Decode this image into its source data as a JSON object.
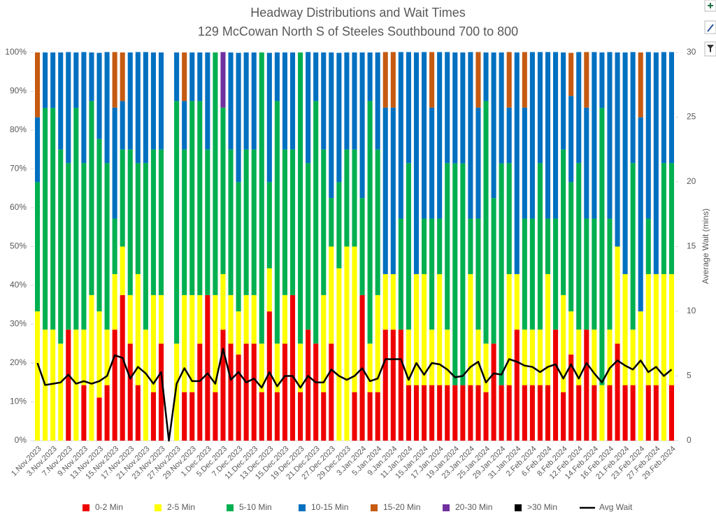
{
  "chart_data": {
    "type": "bar",
    "stacked": true,
    "title": "Headway Distributions and Wait Times",
    "subtitle": "129 McCowan North  S of Steeles Southbound 700 to 800",
    "y2_label": "Average Wait (mins)",
    "categories": [
      "1.Nov.2023",
      null,
      "3.Nov.2023",
      null,
      "7.Nov.2023",
      null,
      "9.Nov.2023",
      null,
      "13.Nov.2023",
      null,
      "15.Nov.2023",
      null,
      "17.Nov.2023",
      null,
      "21.Nov.2023",
      null,
      "23.Nov.2023",
      null,
      "27.Nov.2023",
      null,
      "29.Nov.2023",
      null,
      "1.Dec.2023",
      null,
      "5.Dec.2023",
      null,
      "7.Dec.2023",
      null,
      "11.Dec.2023",
      null,
      "13.Dec.2023",
      null,
      "15.Dec.2023",
      null,
      "19.Dec.2023",
      null,
      "21.Dec.2023",
      null,
      "27.Dec.2023",
      null,
      "29.Dec.2023",
      null,
      "3.Jan.2024",
      null,
      "5.Jan.2024",
      null,
      "9.Jan.2024",
      null,
      "11.Jan.2024",
      null,
      "15.Jan.2024",
      null,
      "17.Jan.2024",
      null,
      "19.Jan.2024",
      null,
      "23.Jan.2024",
      null,
      "25.Jan.2024",
      null,
      "29.Jan.2024",
      null,
      "31.Jan.2024",
      null,
      "2.Feb.2024",
      null,
      "6.Feb.2024",
      null,
      "8.Feb.2024",
      null,
      "12.Feb.2024",
      null,
      "14.Feb.2024",
      null,
      "16.Feb.2024",
      null,
      "21.Feb.2024",
      null,
      "23.Feb.2024",
      null,
      "27.Feb.2024",
      null,
      "29.Feb.2024"
    ],
    "series": [
      {
        "name": "0-2 Min",
        "color": "#ee0000",
        "values": [
          0,
          0,
          0,
          0,
          28.6,
          0,
          14.3,
          0,
          11.1,
          14.3,
          28.6,
          37.5,
          25,
          14.3,
          0,
          12.5,
          25,
          0,
          0,
          12.5,
          12.5,
          25,
          37.5,
          12.5,
          28.6,
          25,
          22.2,
          25,
          25,
          12.5,
          33.3,
          12.5,
          25,
          37.5,
          12.5,
          28.6,
          25,
          12.5,
          25,
          0,
          0,
          12.5,
          37.5,
          12.5,
          12.5,
          28.6,
          28.6,
          28.6,
          14.3,
          14.3,
          14.3,
          14.3,
          14.3,
          14.3,
          14.3,
          14.3,
          14.3,
          14.3,
          12.5,
          25,
          14.3,
          14.3,
          28.6,
          14.3,
          14.3,
          14.3,
          14.3,
          28.6,
          12.5,
          22.2,
          14.3,
          28.6,
          14.3,
          0,
          14.3,
          25,
          14.3,
          14.3,
          0,
          14.3,
          14.3,
          0,
          14.3
        ]
      },
      {
        "name": "2-5 Min",
        "color": "#ffff00",
        "values": [
          33.3,
          28.6,
          28.6,
          25,
          0,
          28.6,
          14.3,
          37.5,
          22.2,
          14.3,
          14.3,
          12.5,
          12.5,
          28.6,
          28.6,
          25,
          12.5,
          0,
          25,
          25,
          25,
          12.5,
          0,
          25,
          14.3,
          12.5,
          11.1,
          12.5,
          12.5,
          12.5,
          11.1,
          12.5,
          12.5,
          0,
          12.5,
          0,
          0,
          25,
          25,
          44.4,
          50,
          37.5,
          0,
          12.5,
          25,
          14.3,
          14.3,
          0,
          14.3,
          28.6,
          28.6,
          14.3,
          28.6,
          14.3,
          0,
          0,
          28.6,
          14.3,
          12.5,
          0,
          0,
          28.6,
          14.3,
          14.3,
          14.3,
          14.3,
          28.6,
          0,
          25,
          11.1,
          14.3,
          0,
          14.3,
          14.3,
          14.3,
          25,
          28.6,
          14.3,
          33.3,
          28.6,
          28.6,
          42.9,
          28.6
        ]
      },
      {
        "name": "5-10 Min",
        "color": "#00b050",
        "values": [
          33.3,
          57.1,
          57.1,
          50,
          42.9,
          57.1,
          42.9,
          50,
          44.4,
          42.9,
          14.3,
          25,
          37.5,
          28.6,
          42.9,
          37.5,
          37.5,
          0,
          62.5,
          37.5,
          50,
          50,
          37.5,
          62.5,
          42.9,
          37.5,
          33.3,
          37.5,
          37.5,
          75,
          22.2,
          62.5,
          37.5,
          37.5,
          75,
          42.9,
          62.5,
          37.5,
          12.5,
          22.2,
          25,
          25,
          25,
          62.5,
          37.5,
          0,
          0,
          28.6,
          42.9,
          0,
          14.3,
          28.6,
          14.3,
          42.9,
          57.1,
          57.1,
          14.3,
          28.6,
          62.5,
          37.5,
          57.1,
          28.6,
          0,
          28.6,
          28.6,
          42.9,
          14.3,
          28.6,
          37.5,
          33.3,
          42.9,
          28.6,
          28.6,
          71.4,
          28.6,
          0,
          0,
          42.9,
          0,
          14.3,
          0,
          28.6,
          28.6
        ]
      },
      {
        "name": "10-15 Min",
        "color": "#0070c0",
        "values": [
          16.7,
          14.3,
          14.3,
          25,
          28.6,
          14.3,
          28.6,
          12.5,
          22.2,
          28.6,
          28.6,
          12.5,
          25,
          28.6,
          28.6,
          25,
          25,
          0,
          12.5,
          12.5,
          12.5,
          12.5,
          25,
          0,
          0,
          25,
          33.3,
          25,
          25,
          0,
          33.3,
          12.5,
          25,
          25,
          0,
          28.6,
          12.5,
          25,
          37.5,
          33.3,
          25,
          25,
          37.5,
          12.5,
          25,
          42.9,
          42.9,
          42.9,
          28.6,
          57.1,
          42.9,
          28.6,
          42.9,
          28.6,
          28.6,
          28.6,
          42.9,
          28.6,
          12.5,
          37.5,
          28.6,
          14.3,
          57.1,
          28.6,
          42.9,
          28.6,
          42.9,
          42.9,
          25,
          22.2,
          28.6,
          28.6,
          42.9,
          14.3,
          42.9,
          50,
          57.1,
          28.6,
          50,
          42.9,
          57.1,
          28.6,
          28.6
        ]
      },
      {
        "name": "15-20 Min",
        "color": "#c55a11",
        "values": [
          16.7,
          0,
          0,
          0,
          0,
          0,
          0,
          0,
          0,
          0,
          14.3,
          12.5,
          0,
          0,
          0,
          0,
          0,
          0,
          0,
          12.5,
          0,
          0,
          0,
          0,
          0,
          0,
          0,
          0,
          0,
          0,
          0,
          0,
          0,
          0,
          0,
          0,
          0,
          0,
          0,
          0,
          0,
          0,
          0,
          0,
          0,
          14.3,
          14.3,
          0,
          0,
          0,
          0,
          14.3,
          0,
          0,
          0,
          0,
          0,
          14.3,
          0,
          0,
          0,
          14.3,
          0,
          14.3,
          0,
          0,
          0,
          0,
          0,
          11.1,
          0,
          14.3,
          0,
          0,
          0,
          0,
          0,
          0,
          16.7,
          0,
          0,
          0,
          0
        ]
      },
      {
        "name": "20-30 Min",
        "color": "#7030a0",
        "values": [
          0,
          0,
          0,
          0,
          0,
          0,
          0,
          0,
          0,
          0,
          0,
          0,
          0,
          0,
          0,
          0,
          0,
          0,
          0,
          0,
          0,
          0,
          0,
          0,
          14.3,
          0,
          0,
          0,
          0,
          0,
          0,
          0,
          0,
          0,
          0,
          0,
          0,
          0,
          0,
          0,
          0,
          0,
          0,
          0,
          0,
          0,
          0,
          0,
          0,
          0,
          0,
          0,
          0,
          0,
          0,
          0,
          0,
          0,
          0,
          0,
          0,
          0,
          0,
          0,
          0,
          0,
          0,
          0,
          0,
          0,
          0,
          0,
          0,
          0,
          0,
          0,
          0,
          0,
          0,
          0,
          0,
          0,
          0
        ]
      },
      {
        "name": ">30 Min",
        "color": "#000000",
        "values": [
          0,
          0,
          0,
          0,
          0,
          0,
          0,
          0,
          0,
          0,
          0,
          0,
          0,
          0,
          0,
          0,
          0,
          0,
          0,
          0,
          0,
          0,
          0,
          0,
          0,
          0,
          0,
          0,
          0,
          0,
          0,
          0,
          0,
          0,
          0,
          0,
          0,
          0,
          0,
          0,
          0,
          0,
          0,
          0,
          0,
          0,
          0,
          0,
          0,
          0,
          0,
          0,
          0,
          0,
          0,
          0,
          0,
          0,
          0,
          0,
          0,
          0,
          0,
          0,
          0,
          0,
          0,
          0,
          0,
          0,
          0,
          0,
          0,
          0,
          0,
          0,
          0,
          0,
          0,
          0,
          0,
          0,
          0
        ]
      },
      {
        "name": "Avg Wait",
        "color": "#000000",
        "type": "line",
        "axis": "y2",
        "values": [
          6,
          4.3,
          4.4,
          4.5,
          5.1,
          4.4,
          4.6,
          4.4,
          4.6,
          5.0,
          6.6,
          6.4,
          4.8,
          5.7,
          5.2,
          4.4,
          5.3,
          0,
          4.4,
          5.6,
          4.6,
          4.6,
          5.2,
          4.4,
          7.1,
          4.7,
          5.3,
          4.5,
          4.8,
          4.1,
          5.3,
          4.2,
          5.0,
          5.0,
          4.1,
          5.0,
          4.5,
          4.5,
          5.5,
          5.0,
          4.7,
          5.0,
          5.6,
          4.6,
          4.8,
          6.3,
          6.3,
          6.3,
          4.7,
          6.0,
          5.1,
          6.0,
          5.9,
          5.5,
          4.9,
          5.0,
          5.7,
          6.1,
          4.5,
          5.2,
          5.1,
          6.3,
          6.1,
          5.8,
          5.7,
          5.3,
          5.7,
          5.9,
          4.8,
          5.9,
          4.8,
          6.0,
          5.2,
          4.5,
          5.6,
          6.2,
          5.8,
          5.5,
          6.2,
          5.3,
          5.7,
          5.0,
          5.5
        ]
      }
    ],
    "ylim": [
      0,
      100
    ],
    "yticks": [
      {
        "value": 0,
        "label": "0%"
      },
      {
        "value": 10,
        "label": "10%"
      },
      {
        "value": 20,
        "label": "20%"
      },
      {
        "value": 30,
        "label": "30%"
      },
      {
        "value": 40,
        "label": "40%"
      },
      {
        "value": 50,
        "label": "50%"
      },
      {
        "value": 60,
        "label": "60%"
      },
      {
        "value": 70,
        "label": "70%"
      },
      {
        "value": 80,
        "label": "80%"
      },
      {
        "value": 90,
        "label": "90%"
      },
      {
        "value": 100,
        "label": "100%"
      }
    ],
    "y2lim": [
      0,
      30
    ],
    "y2ticks": [
      0,
      5,
      10,
      15,
      20,
      25,
      30
    ],
    "grid": false,
    "legend": "bottom"
  }
}
